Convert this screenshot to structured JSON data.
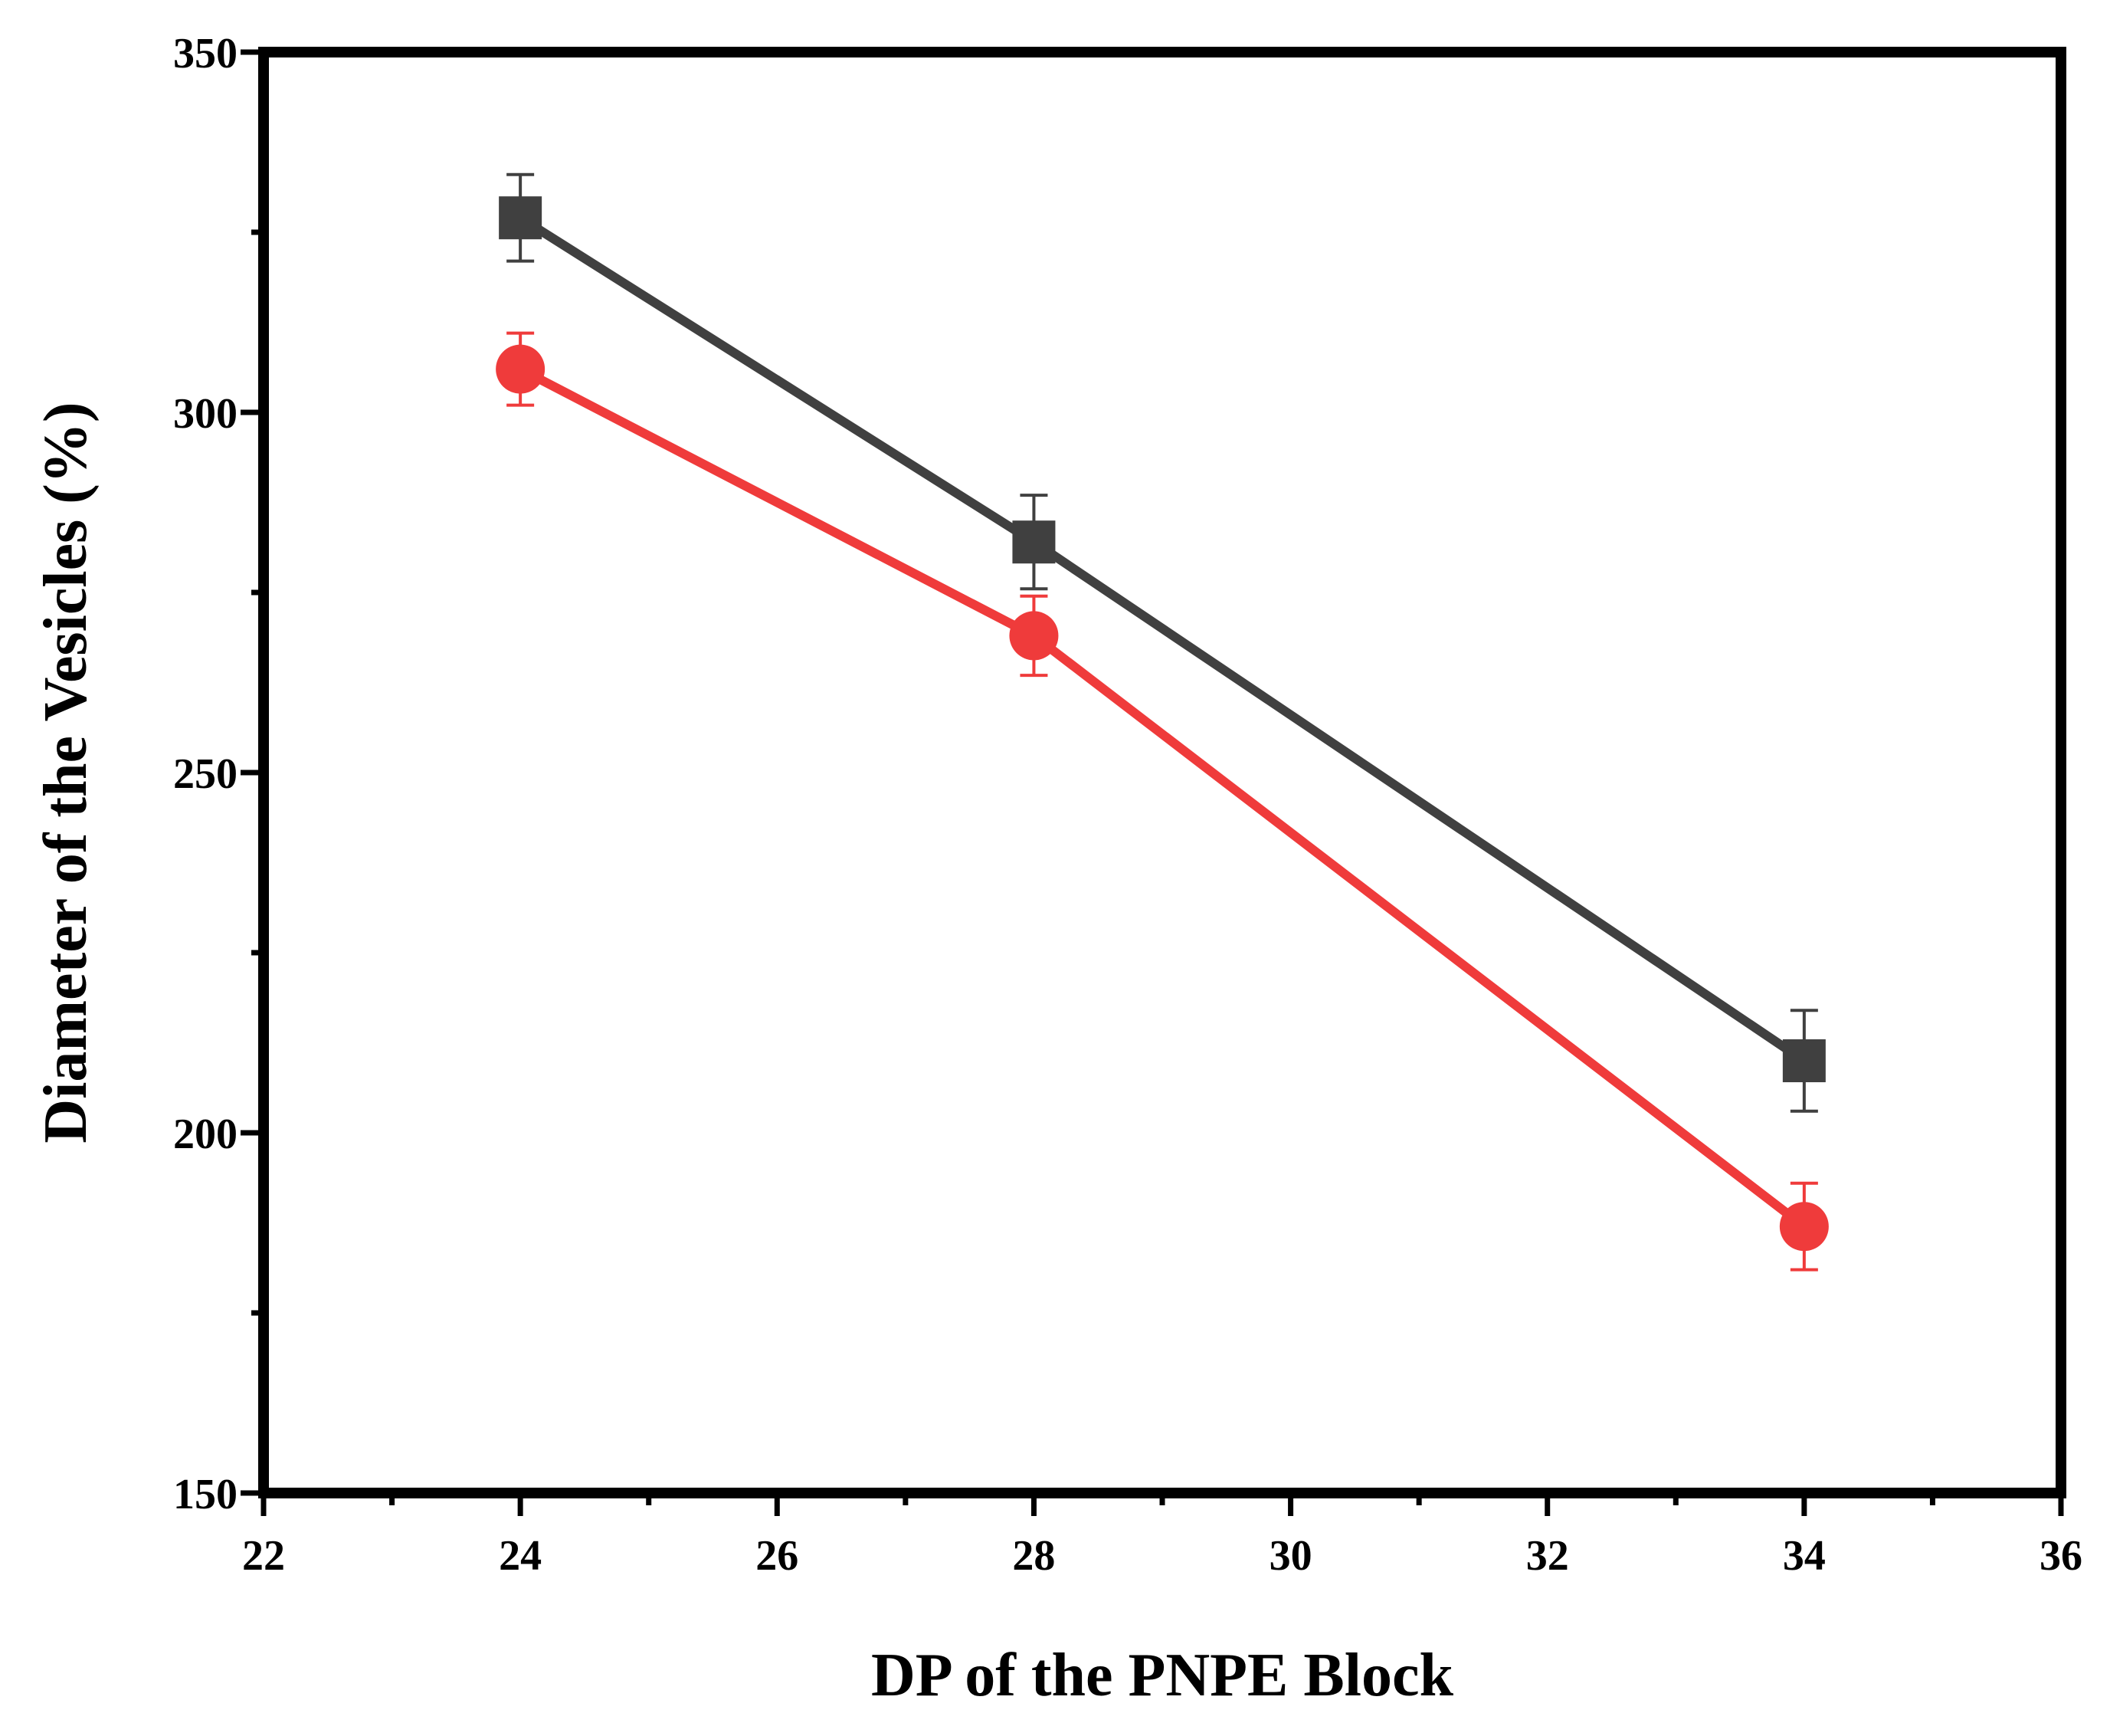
{
  "chart_data": {
    "type": "line",
    "title": "",
    "xlabel": "DP of the PNPE Block",
    "ylabel": "Diameter of the Vesicles (%)",
    "xlim": [
      22,
      36
    ],
    "ylim": [
      150,
      350
    ],
    "xticks": [
      22,
      24,
      26,
      28,
      30,
      32,
      34,
      36
    ],
    "yticks": [
      150,
      200,
      250,
      300,
      350
    ],
    "x": [
      24,
      28,
      34
    ],
    "series": [
      {
        "name": "series-gray",
        "marker": "square",
        "color": "#404040",
        "values": [
          327,
          282,
          210
        ],
        "errors": [
          6,
          6.5,
          7
        ]
      },
      {
        "name": "series-red",
        "marker": "circle",
        "color": "#ef3b3b",
        "values": [
          306,
          269,
          187
        ],
        "errors": [
          5,
          5.5,
          6
        ]
      }
    ]
  }
}
